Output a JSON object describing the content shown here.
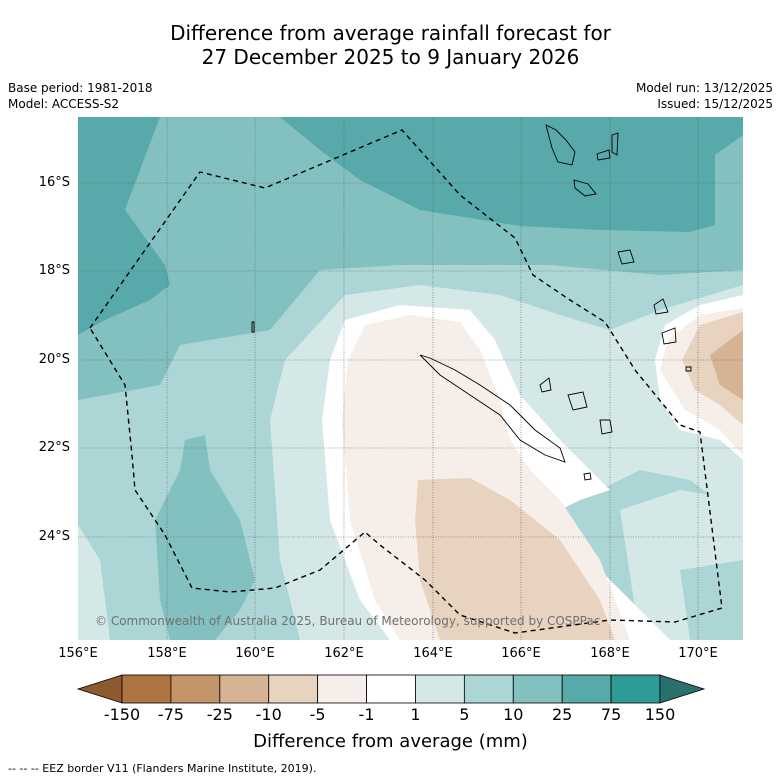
{
  "title_line1": "Difference from average rainfall forecast for",
  "title_line2": "27 December 2025 to 9 January 2026",
  "meta": {
    "base_period": "Base period: 1981-2018",
    "model": "Model: ACCESS-S2",
    "model_run": "Model run: 13/12/2025",
    "issued": "Issued: 15/12/2025"
  },
  "lat_labels": [
    "16°S",
    "18°S",
    "20°S",
    "22°S",
    "24°S"
  ],
  "lon_labels": [
    "156°E",
    "158°E",
    "160°E",
    "162°E",
    "164°E",
    "166°E",
    "168°E",
    "170°E"
  ],
  "copyright": "© Commonwealth of Australia 2025, Bureau of Meteorology, supported by COSPPac",
  "colorbar": {
    "tick_labels": [
      "-150",
      "-75",
      "-25",
      "-10",
      "-5",
      "-1",
      "1",
      "5",
      "10",
      "25",
      "75",
      "150"
    ],
    "colors": [
      "#8c5a2e",
      "#ae7541",
      "#c29467",
      "#d6b393",
      "#e8d2c0",
      "#f6eee8",
      "#ffffff",
      "#d4e8e7",
      "#acd6d5",
      "#83c1c0",
      "#58a9aa",
      "#2f9b96",
      "#2a716e"
    ],
    "title": "Difference from average (mm)"
  },
  "footnote": "-- -- -- EEZ border V11 (Flanders Marine Institute, 2019)."
}
